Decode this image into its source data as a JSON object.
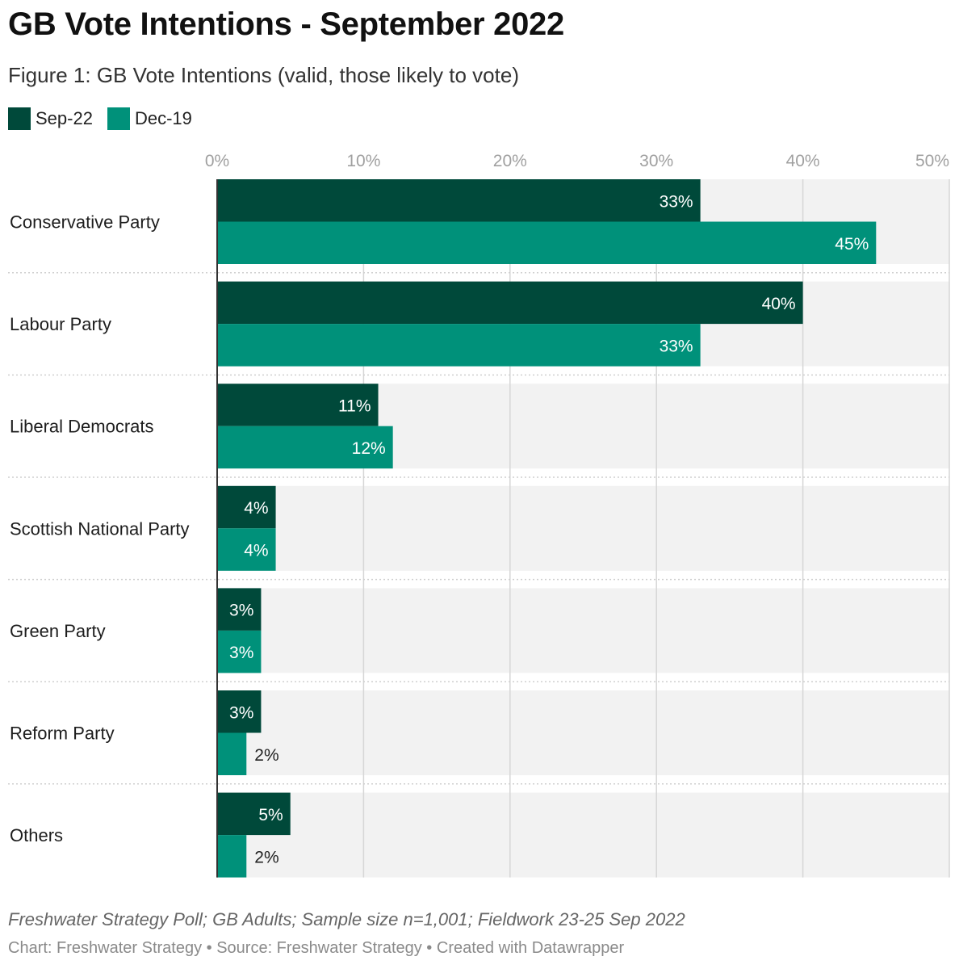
{
  "header": {
    "title": "GB Vote Intentions - September 2022",
    "subtitle": "Figure 1: GB Vote Intentions (valid, those likely to vote)"
  },
  "legend": [
    {
      "label": "Sep-22",
      "color": "#00493a"
    },
    {
      "label": "Dec-19",
      "color": "#00917a"
    }
  ],
  "chart_data": {
    "type": "bar",
    "orientation": "horizontal",
    "categories": [
      "Conservative Party",
      "Labour Party",
      "Liberal Democrats",
      "Scottish National Party",
      "Green Party",
      "Reform Party",
      "Others"
    ],
    "series": [
      {
        "name": "Sep-22",
        "color": "#00493a",
        "values": [
          33,
          40,
          11,
          4,
          3,
          3,
          5
        ],
        "labels": [
          "33%",
          "40%",
          "11%",
          "4%",
          "3%",
          "3%",
          "5%"
        ]
      },
      {
        "name": "Dec-19",
        "color": "#00917a",
        "values": [
          45,
          33,
          12,
          4,
          3,
          2,
          2
        ],
        "labels": [
          "45%",
          "33%",
          "12%",
          "4%",
          "3%",
          "2%",
          "2%"
        ]
      }
    ],
    "xlim": [
      0,
      50
    ],
    "xticks": [
      0,
      10,
      20,
      30,
      40,
      50
    ],
    "xtick_labels": [
      "0%",
      "10%",
      "20%",
      "30%",
      "40%",
      "50%"
    ],
    "grid": true,
    "legend_position": "top-left"
  },
  "footer": {
    "note": "Freshwater Strategy Poll; GB Adults; Sample size n=1,001; Fieldwork 23-25 Sep 2022",
    "credit": "Chart: Freshwater Strategy • Source: Freshwater Strategy • Created with Datawrapper"
  }
}
